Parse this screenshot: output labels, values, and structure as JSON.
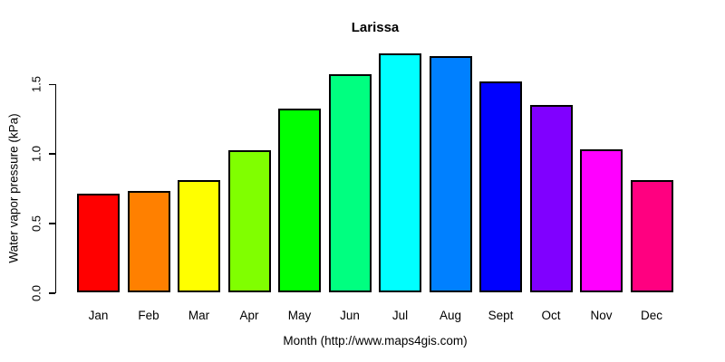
{
  "chart_data": {
    "type": "bar",
    "title": "Larissa",
    "xlabel": "Month (http://www.maps4gis.com)",
    "ylabel": "Water vapor pressure (kPa)",
    "categories": [
      "Jan",
      "Feb",
      "Mar",
      "Apr",
      "May",
      "Jun",
      "Jul",
      "Aug",
      "Sept",
      "Oct",
      "Nov",
      "Dec"
    ],
    "values": [
      0.71,
      0.73,
      0.81,
      1.02,
      1.32,
      1.57,
      1.72,
      1.7,
      1.52,
      1.35,
      1.03,
      0.81
    ],
    "bar_colors": [
      "#FF0000",
      "#FF8000",
      "#FFFF00",
      "#80FF00",
      "#00FF00",
      "#00FF80",
      "#00FFFF",
      "#0080FF",
      "#0000FF",
      "#8000FF",
      "#FF00FF",
      "#FF0080"
    ],
    "bar_border_color": "#000000",
    "background_color": "#FFFFFF",
    "text_color": "#000000",
    "ytick_labels": [
      "0.0",
      "0.5",
      "1.0",
      "1.5"
    ],
    "ytick_values": [
      0,
      0.5,
      1.0,
      1.5
    ],
    "ylim": [
      0,
      1.75
    ],
    "grid": false,
    "legend": "none"
  }
}
